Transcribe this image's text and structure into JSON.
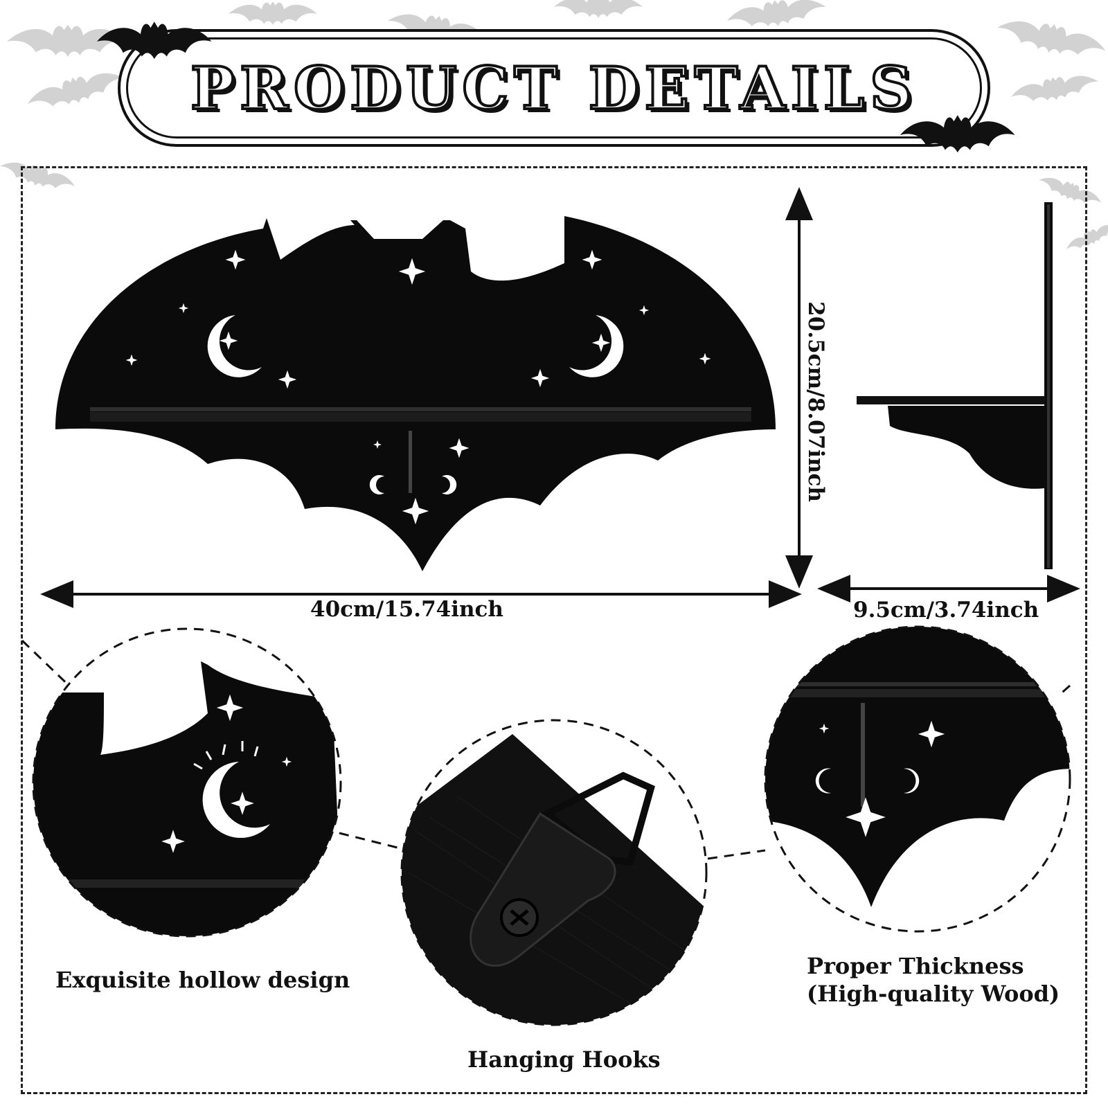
{
  "title": "PRODUCT DETAILS",
  "dimensions": {
    "width": "40cm/15.74inch",
    "height": "20.5cm/8.07inch",
    "depth": "9.5cm/3.74inch"
  },
  "features": [
    {
      "caption": "Exquisite hollow design"
    },
    {
      "caption": "Hanging Hooks"
    },
    {
      "caption_line1": "Proper Thickness",
      "caption_line2": "(High-quality Wood)"
    }
  ],
  "colors": {
    "shelf": "#0b0b0b",
    "background_bats": "#d0d0d0",
    "accent": "#ffffff"
  }
}
